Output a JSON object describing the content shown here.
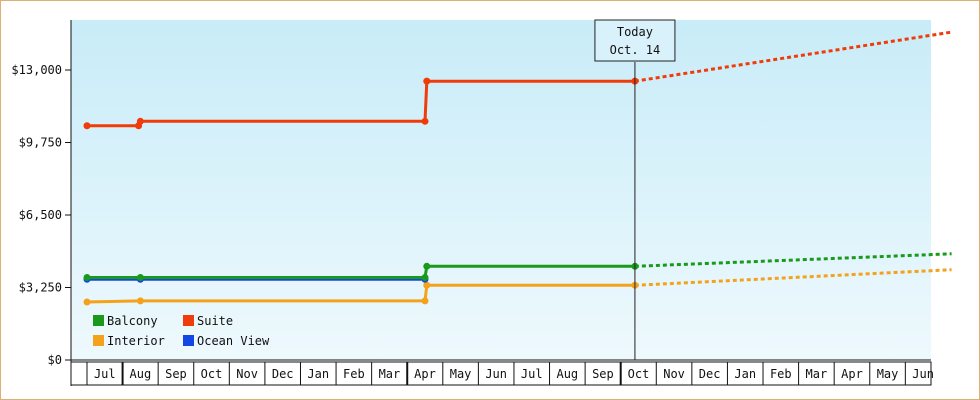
{
  "chart_data": {
    "type": "line",
    "title": "",
    "xlabel": "",
    "ylabel": "",
    "ylim": [
      0,
      13000
    ],
    "y_ticks": [
      "$0",
      "$3,250",
      "$6,500",
      "$9,750",
      "$13,000"
    ],
    "y_tick_values": [
      0,
      3250,
      6500,
      9750,
      13000
    ],
    "x_ticks": [
      "Jul",
      "Aug",
      "Sep",
      "Oct",
      "Nov",
      "Dec",
      "Jan",
      "Feb",
      "Mar",
      "Apr",
      "May",
      "Jun",
      "Jul",
      "Aug",
      "Sep",
      "Oct",
      "Nov",
      "Dec",
      "Jan",
      "Feb",
      "Mar",
      "Apr",
      "May",
      "Jun"
    ],
    "grid": false,
    "legend_position": "bottom-left",
    "today": {
      "line1": "Today",
      "line2": "Oct. 14",
      "month_index": 15.4
    },
    "series": [
      {
        "name": "Balcony",
        "color": "#1a9a1a",
        "points": [
          [
            0,
            3700
          ],
          [
            1.5,
            3700
          ],
          [
            9.5,
            3700
          ],
          [
            9.55,
            4200
          ],
          [
            15.4,
            4200
          ]
        ],
        "projection": [
          [
            15.4,
            4200
          ],
          [
            24.3,
            4760
          ]
        ]
      },
      {
        "name": "Suite",
        "color": "#f03c0a",
        "points": [
          [
            0,
            10500
          ],
          [
            1.45,
            10500
          ],
          [
            1.5,
            10700
          ],
          [
            9.5,
            10700
          ],
          [
            9.55,
            12500
          ],
          [
            15.4,
            12500
          ]
        ],
        "projection": [
          [
            15.4,
            12500
          ],
          [
            24.3,
            14700
          ]
        ]
      },
      {
        "name": "Interior",
        "color": "#f4a21c",
        "points": [
          [
            0,
            2600
          ],
          [
            1.5,
            2650
          ],
          [
            9.5,
            2650
          ],
          [
            9.55,
            3350
          ],
          [
            15.4,
            3350
          ]
        ],
        "projection": [
          [
            15.4,
            3350
          ],
          [
            24.3,
            4050
          ]
        ]
      },
      {
        "name": "Ocean View",
        "color": "#1446e6",
        "points": [
          [
            0,
            3620
          ],
          [
            1.5,
            3620
          ],
          [
            9.5,
            3620
          ]
        ],
        "projection": []
      }
    ]
  }
}
